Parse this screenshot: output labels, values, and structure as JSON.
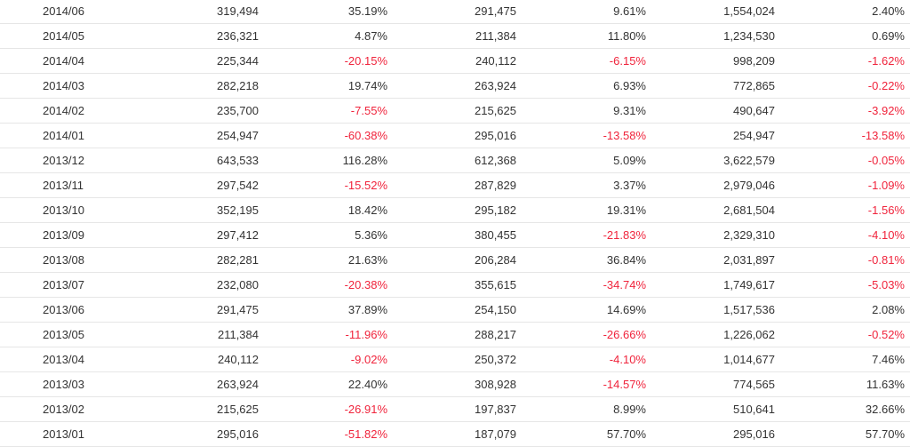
{
  "table": {
    "rows": [
      {
        "date": "2014/06",
        "v1": "319,494",
        "p1": "35.19%",
        "v2": "291,475",
        "p2": "9.61%",
        "v3": "1,554,024",
        "p3": "2.40%"
      },
      {
        "date": "2014/05",
        "v1": "236,321",
        "p1": "4.87%",
        "v2": "211,384",
        "p2": "11.80%",
        "v3": "1,234,530",
        "p3": "0.69%"
      },
      {
        "date": "2014/04",
        "v1": "225,344",
        "p1": "-20.15%",
        "v2": "240,112",
        "p2": "-6.15%",
        "v3": "998,209",
        "p3": "-1.62%"
      },
      {
        "date": "2014/03",
        "v1": "282,218",
        "p1": "19.74%",
        "v2": "263,924",
        "p2": "6.93%",
        "v3": "772,865",
        "p3": "-0.22%"
      },
      {
        "date": "2014/02",
        "v1": "235,700",
        "p1": "-7.55%",
        "v2": "215,625",
        "p2": "9.31%",
        "v3": "490,647",
        "p3": "-3.92%"
      },
      {
        "date": "2014/01",
        "v1": "254,947",
        "p1": "-60.38%",
        "v2": "295,016",
        "p2": "-13.58%",
        "v3": "254,947",
        "p3": "-13.58%"
      },
      {
        "date": "2013/12",
        "v1": "643,533",
        "p1": "116.28%",
        "v2": "612,368",
        "p2": "5.09%",
        "v3": "3,622,579",
        "p3": "-0.05%"
      },
      {
        "date": "2013/11",
        "v1": "297,542",
        "p1": "-15.52%",
        "v2": "287,829",
        "p2": "3.37%",
        "v3": "2,979,046",
        "p3": "-1.09%"
      },
      {
        "date": "2013/10",
        "v1": "352,195",
        "p1": "18.42%",
        "v2": "295,182",
        "p2": "19.31%",
        "v3": "2,681,504",
        "p3": "-1.56%"
      },
      {
        "date": "2013/09",
        "v1": "297,412",
        "p1": "5.36%",
        "v2": "380,455",
        "p2": "-21.83%",
        "v3": "2,329,310",
        "p3": "-4.10%"
      },
      {
        "date": "2013/08",
        "v1": "282,281",
        "p1": "21.63%",
        "v2": "206,284",
        "p2": "36.84%",
        "v3": "2,031,897",
        "p3": "-0.81%"
      },
      {
        "date": "2013/07",
        "v1": "232,080",
        "p1": "-20.38%",
        "v2": "355,615",
        "p2": "-34.74%",
        "v3": "1,749,617",
        "p3": "-5.03%"
      },
      {
        "date": "2013/06",
        "v1": "291,475",
        "p1": "37.89%",
        "v2": "254,150",
        "p2": "14.69%",
        "v3": "1,517,536",
        "p3": "2.08%"
      },
      {
        "date": "2013/05",
        "v1": "211,384",
        "p1": "-11.96%",
        "v2": "288,217",
        "p2": "-26.66%",
        "v3": "1,226,062",
        "p3": "-0.52%"
      },
      {
        "date": "2013/04",
        "v1": "240,112",
        "p1": "-9.02%",
        "v2": "250,372",
        "p2": "-4.10%",
        "v3": "1,014,677",
        "p3": "7.46%"
      },
      {
        "date": "2013/03",
        "v1": "263,924",
        "p1": "22.40%",
        "v2": "308,928",
        "p2": "-14.57%",
        "v3": "774,565",
        "p3": "11.63%"
      },
      {
        "date": "2013/02",
        "v1": "215,625",
        "p1": "-26.91%",
        "v2": "197,837",
        "p2": "8.99%",
        "v3": "510,641",
        "p3": "32.66%"
      },
      {
        "date": "2013/01",
        "v1": "295,016",
        "p1": "-51.82%",
        "v2": "187,079",
        "p2": "57.70%",
        "v3": "295,016",
        "p3": "57.70%"
      }
    ]
  },
  "colors": {
    "negative": "#f0243c",
    "text": "#333333",
    "row_border": "#e6e6e6"
  }
}
